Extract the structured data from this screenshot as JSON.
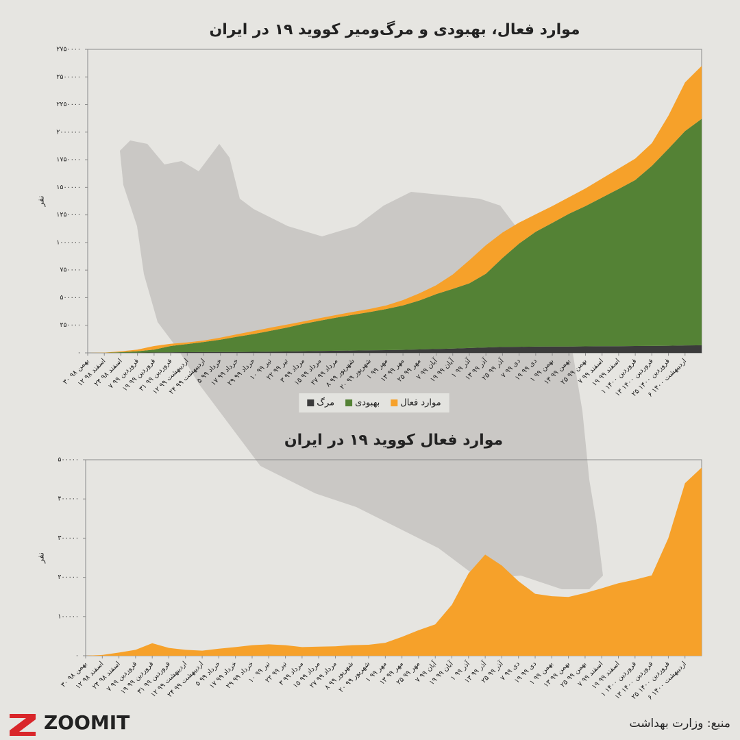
{
  "chart_data": [
    {
      "type": "area",
      "stacked": true,
      "title": "موارد فعال، بهبودی و مرگ‌ومیر کووید ۱۹ در ایران",
      "y_label": "نفر",
      "categories": [
        "۳۰ بهمن ۹۸",
        "۱۲ اسفند ۹۸",
        "۲۴ اسفند ۹۸",
        "۷ فروردین ۹۹",
        "۱۹ فروردین ۹۹",
        "۳۱ فروردین ۹۹",
        "۱۲ اردیبهشت ۹۹",
        "۲۴ اردیبهشت ۹۹",
        "۵ خرداد ۹۹",
        "۱۷ خرداد ۹۹",
        "۲۹ خرداد ۹۹",
        "۱۰ تیر ۹۹",
        "۲۲ تیر ۹۹",
        "۳ مرداد ۹۹",
        "۱۵ مرداد ۹۹",
        "۲۷ مرداد ۹۹",
        "۸ شهریور ۹۹",
        "۲۰ شهریور ۹۹",
        "۱ مهر ۹۹",
        "۱۳ مهر ۹۹",
        "۲۵ مهر ۹۹",
        "۷ آبان ۹۹",
        "۱۹ آبان ۹۹",
        "۱ آذر ۹۹",
        "۱۳ آذر ۹۹",
        "۲۵ آذر ۹۹",
        "۷ دی ۹۹",
        "۱۹ دی ۹۹",
        "۱ بهمن ۹۹",
        "۱۳ بهمن ۹۹",
        "۲۵ بهمن ۹۹",
        "۷ اسفند ۹۹",
        "۱۹ اسفند ۹۹",
        "۱ فروردین ۱۴۰۰",
        "۱۳ فروردین ۱۴۰۰",
        "۲۵ فروردین ۱۴۰۰",
        "۶ اردیبهشت ۱۴۰۰",
        null
      ],
      "series": [
        {
          "name": "مرگ",
          "color": "#3b3b3b",
          "values": [
            0,
            66,
            600,
            2000,
            3600,
            5100,
            6000,
            6800,
            7500,
            8100,
            9300,
            10800,
            12300,
            14600,
            16800,
            19000,
            21400,
            23300,
            25000,
            27400,
            31000,
            34500,
            38700,
            44300,
            49300,
            53400,
            55000,
            56200,
            57200,
            58000,
            58900,
            60000,
            61000,
            61900,
            62900,
            64500,
            67500,
            69000
          ]
        },
        {
          "name": "بهبودی",
          "color": "#548235",
          "values": [
            0,
            434,
            5400,
            13000,
            26400,
            56900,
            74000,
            92200,
            112500,
            137900,
            161700,
            188200,
            216700,
            248400,
            275200,
            301000,
            323600,
            346700,
            372000,
            402600,
            444000,
            497500,
            541300,
            585700,
            667700,
            806600,
            935000,
            1040800,
            1120800,
            1202000,
            1271100,
            1348000,
            1424000,
            1504100,
            1632100,
            1785500,
            1942500,
            2051000
          ]
        },
        {
          "name": "موارد فعال",
          "color": "#f6a12a",
          "values": [
            0,
            2000,
            8000,
            15000,
            32000,
            20000,
            15000,
            13000,
            18000,
            22000,
            27000,
            29000,
            27000,
            22000,
            23000,
            24000,
            27000,
            28000,
            33000,
            48000,
            65000,
            80000,
            130000,
            210000,
            258000,
            230000,
            190000,
            158000,
            152000,
            150000,
            160000,
            172000,
            185000,
            194000,
            205000,
            300000,
            440000,
            480000
          ]
        }
      ],
      "ylim": [
        0,
        2750000
      ],
      "yticks": [
        {
          "value": 0,
          "label": "۰"
        },
        {
          "value": 250000,
          "label": "۲۵۰۰۰۰"
        },
        {
          "value": 500000,
          "label": "۵۰۰۰۰۰"
        },
        {
          "value": 750000,
          "label": "۷۵۰۰۰۰"
        },
        {
          "value": 1000000,
          "label": "۱۰۰۰۰۰۰"
        },
        {
          "value": 1250000,
          "label": "۱۲۵۰۰۰۰"
        },
        {
          "value": 1500000,
          "label": "۱۵۰۰۰۰۰"
        },
        {
          "value": 1750000,
          "label": "۱۷۵۰۰۰۰"
        },
        {
          "value": 2000000,
          "label": "۲۰۰۰۰۰۰"
        },
        {
          "value": 2250000,
          "label": "۲۲۵۰۰۰۰"
        },
        {
          "value": 2500000,
          "label": "۲۵۰۰۰۰۰"
        },
        {
          "value": 2750000,
          "label": "۲۷۵۰۰۰۰"
        }
      ],
      "legend": "bottom"
    },
    {
      "type": "area",
      "title": "موارد فعال کووید ۱۹ در ایران",
      "y_label": "نفر",
      "categories": [
        "۳۰ بهمن ۹۸",
        "۱۲ اسفند ۹۸",
        "۲۴ اسفند ۹۸",
        "۷ فروردین ۹۹",
        "۱۹ فروردین ۹۹",
        "۳۱ فروردین ۹۹",
        "۱۲ اردیبهشت ۹۹",
        "۲۴ اردیبهشت ۹۹",
        "۵ خرداد ۹۹",
        "۱۷ خرداد ۹۹",
        "۲۹ خرداد ۹۹",
        "۱۰ تیر ۹۹",
        "۲۲ تیر ۹۹",
        "۳ مرداد ۹۹",
        "۱۵ مرداد ۹۹",
        "۲۷ مرداد ۹۹",
        "۸ شهریور ۹۹",
        "۲۰ شهریور ۹۹",
        "۱ مهر ۹۹",
        "۱۳ مهر ۹۹",
        "۲۵ مهر ۹۹",
        "۷ آبان ۹۹",
        "۱۹ آبان ۹۹",
        "۱ آذر ۹۹",
        "۱۳ آذر ۹۹",
        "۲۵ آذر ۹۹",
        "۷ دی ۹۹",
        "۱۹ دی ۹۹",
        "۱ بهمن ۹۹",
        "۱۳ بهمن ۹۹",
        "۲۵ بهمن ۹۹",
        "۷ اسفند ۹۹",
        "۱۹ اسفند ۹۹",
        "۱ فروردین ۱۴۰۰",
        "۱۳ فروردین ۱۴۰۰",
        "۲۵ فروردین ۱۴۰۰",
        "۶ اردیبهشت ۱۴۰۰",
        null
      ],
      "values": [
        0,
        2000,
        8000,
        15000,
        32000,
        20000,
        15000,
        13000,
        18000,
        22000,
        27000,
        29000,
        27000,
        22000,
        23000,
        24000,
        27000,
        28000,
        33000,
        48000,
        65000,
        80000,
        130000,
        210000,
        258000,
        230000,
        190000,
        158000,
        152000,
        150000,
        160000,
        172000,
        185000,
        194000,
        205000,
        300000,
        440000,
        480000
      ],
      "color": "#f6a12a",
      "ylim": [
        0,
        500000
      ],
      "yticks": [
        {
          "value": 0,
          "label": "۰"
        },
        {
          "value": 100000,
          "label": "۱۰۰۰۰۰"
        },
        {
          "value": 200000,
          "label": "۲۰۰۰۰۰"
        },
        {
          "value": 300000,
          "label": "۳۰۰۰۰۰"
        },
        {
          "value": 400000,
          "label": "۴۰۰۰۰۰"
        },
        {
          "value": 500000,
          "label": "۵۰۰۰۰۰"
        }
      ]
    }
  ],
  "source": "منبع: وزارت بهداشت",
  "logo": "ZOOMIT"
}
